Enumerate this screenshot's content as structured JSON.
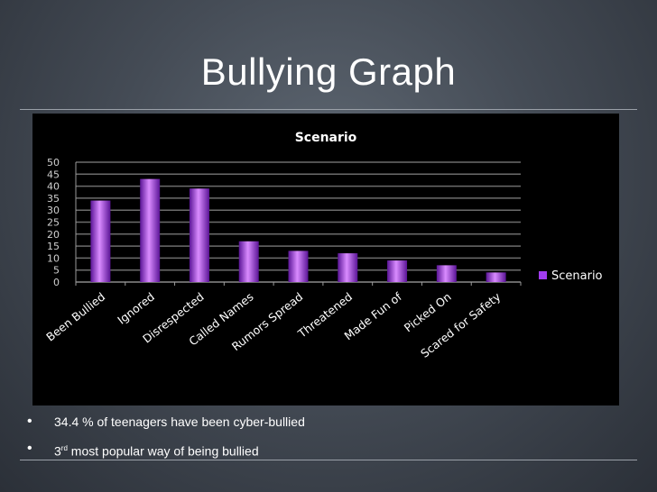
{
  "slide": {
    "title": "Bullying Graph",
    "bullets": [
      {
        "text": "34.4 % of teenagers have been cyber-bullied"
      },
      {
        "pre": "3",
        "sup": "rd",
        "post": " most popular way of being bullied"
      }
    ]
  },
  "colors": {
    "bar": "#a23cf0",
    "bar_light": "#d98bff",
    "bar_dark": "#5a1496",
    "grid": "#6c6c6c",
    "chart_bg": "#000000"
  },
  "chart_data": {
    "type": "bar",
    "title": "Scenario",
    "xlabel": "",
    "ylabel": "",
    "categories": [
      "Been Bullied",
      "Ignored",
      "Disrespected",
      "Called Names",
      "Rumors Spread",
      "Threatened",
      "Made Fun of",
      "Picked On",
      "Scared for Safety"
    ],
    "series": [
      {
        "name": "Scenario",
        "values": [
          34,
          43,
          39,
          17,
          13,
          12,
          9,
          7,
          4
        ]
      }
    ],
    "ylim": [
      0,
      50
    ],
    "yticks": [
      0,
      5,
      10,
      15,
      20,
      25,
      30,
      35,
      40,
      45,
      50
    ],
    "grid": true,
    "legend": "right"
  }
}
